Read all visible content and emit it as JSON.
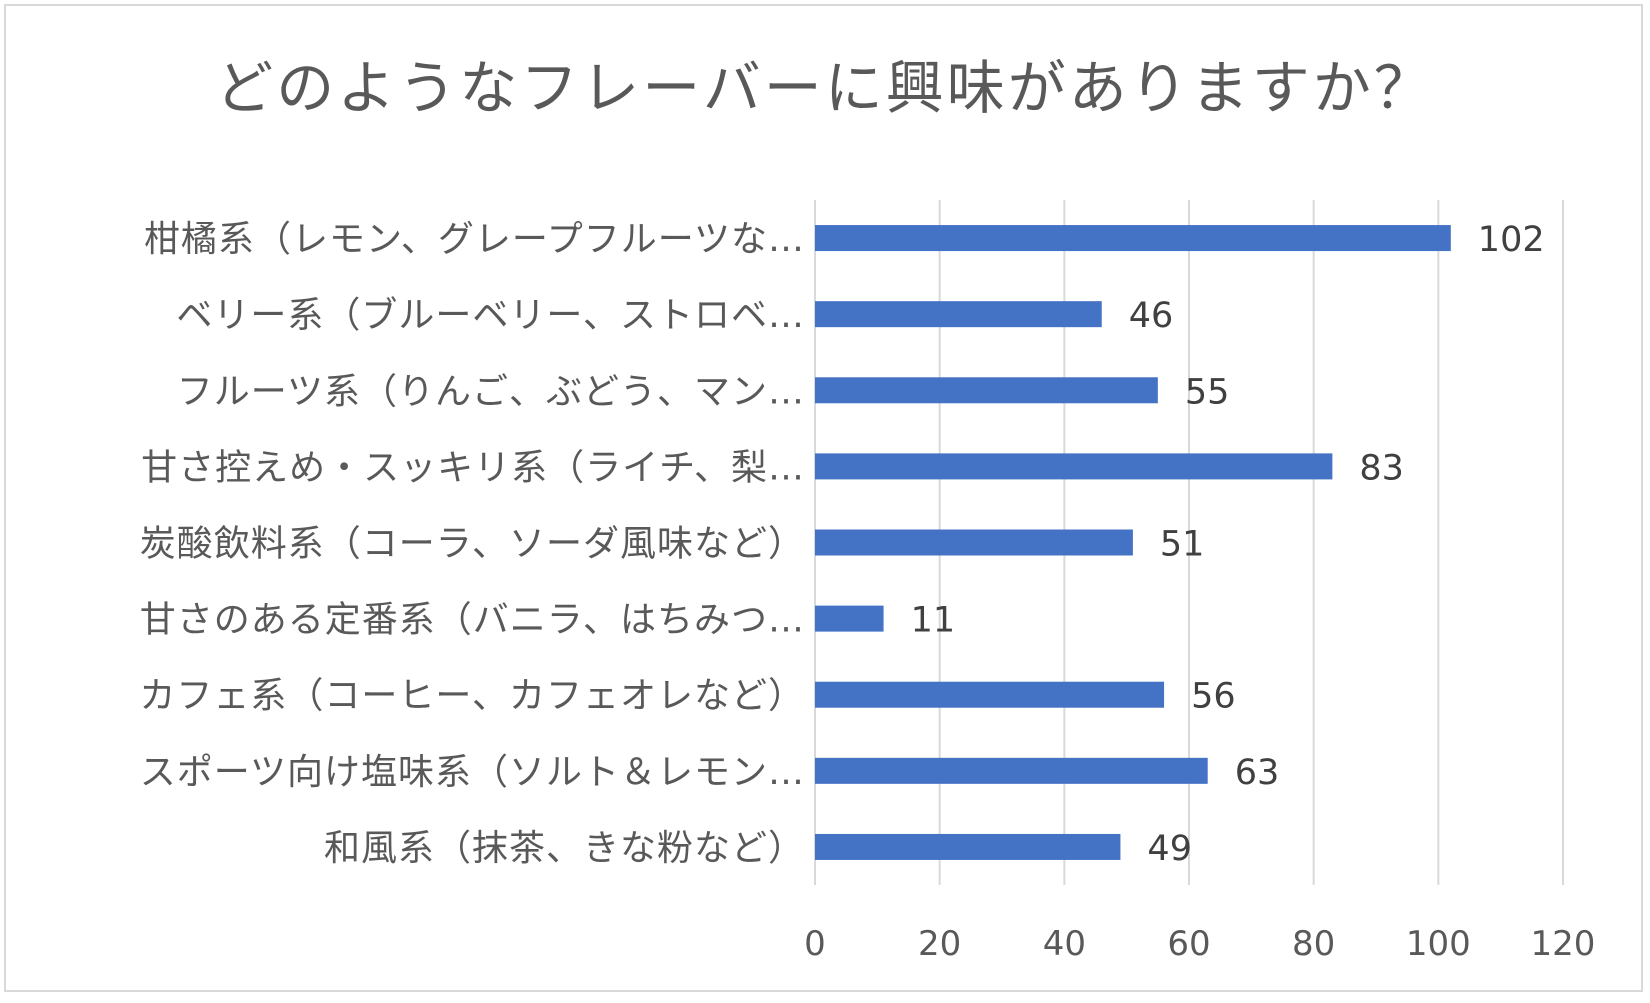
{
  "chart_data": {
    "type": "bar",
    "orientation": "horizontal",
    "title": "どのようなフレーバーに興味がありますか？",
    "categories": [
      "柑橘系（レモン、グレープフルーツな…",
      "ベリー系（ブルーベリー、ストロベ…",
      "フルーツ系（りんご、ぶどう、マン…",
      "甘さ控えめ・スッキリ系（ライチ、梨…",
      "炭酸飲料系（コーラ、ソーダ風味など）",
      "甘さのある定番系（バニラ、はちみつ…",
      "カフェ系（コーヒー、カフェオレなど）",
      "スポーツ向け塩味系（ソルト＆レモン…",
      "和風系（抹茶、きな粉など）"
    ],
    "values": [
      102,
      46,
      55,
      83,
      51,
      11,
      56,
      63,
      49
    ],
    "xlim": [
      0,
      120
    ],
    "ticks": [
      0,
      20,
      40,
      60,
      80,
      100,
      120
    ],
    "tick_labels": [
      "0",
      "20",
      "40",
      "60",
      "80",
      "100",
      "120"
    ],
    "xlabel": "",
    "ylabel": "",
    "grid": true,
    "legend": "none",
    "bar_color": "#4472c4"
  }
}
